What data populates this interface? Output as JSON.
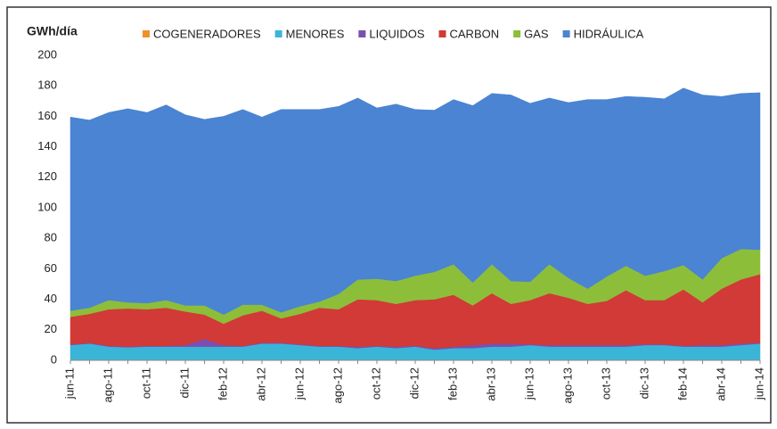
{
  "chart_data": {
    "type": "stacked-area",
    "title": "GWh/día",
    "categories": [
      "jun-11",
      null,
      "ago-11",
      null,
      "oct-11",
      null,
      "dic-11",
      null,
      "feb-12",
      null,
      "abr-12",
      null,
      "jun-12",
      null,
      "ago-12",
      null,
      "oct-12",
      null,
      "dic-12",
      null,
      "feb-13",
      null,
      "abr-13",
      null,
      "jun-13",
      null,
      "ago-13",
      null,
      "oct-13",
      null,
      "dic-13",
      null,
      "feb-14",
      null,
      "abr-14",
      null,
      "jun-14"
    ],
    "series": [
      {
        "name": "COGENERADORES",
        "color": "#f0902a",
        "values": [
          0.5,
          0.5,
          0.5,
          0.5,
          0.5,
          0.5,
          0.5,
          0.5,
          0.5,
          0.5,
          0.5,
          0.5,
          0.5,
          0.5,
          0.5,
          0.5,
          0.5,
          0.5,
          0.5,
          0.5,
          0.5,
          0.5,
          0.5,
          0.5,
          0.5,
          0.5,
          0.5,
          0.5,
          0.5,
          0.5,
          0.5,
          0.5,
          0.5,
          0.5,
          0.5,
          0.5,
          0.5
        ]
      },
      {
        "name": "MENORES",
        "color": "#3ab5d8",
        "values": [
          9.5,
          10.5,
          8.5,
          8,
          8.5,
          8.5,
          8.5,
          8.5,
          8.5,
          8.5,
          10.5,
          10.5,
          9.5,
          8.5,
          8.5,
          7.5,
          8.5,
          7.5,
          8.5,
          6.5,
          7.5,
          7.5,
          8.5,
          8.5,
          9.5,
          8.5,
          8.5,
          8.5,
          8.5,
          8.5,
          9.5,
          9.5,
          8.5,
          8.5,
          8.5,
          9.5,
          10.5
        ]
      },
      {
        "name": "LIQUIDOS",
        "color": "#7b4fb0",
        "values": [
          0.5,
          0.5,
          0.5,
          0.5,
          0.5,
          0.5,
          1,
          5,
          1,
          0.5,
          0.5,
          0.5,
          0.5,
          0.5,
          0.5,
          1,
          0.5,
          1,
          0.5,
          1,
          1,
          2,
          2,
          2,
          0.5,
          1,
          1,
          1,
          1,
          1,
          0.5,
          0.5,
          0.5,
          1,
          1,
          1,
          0.5
        ]
      },
      {
        "name": "CARBON",
        "color": "#d13a36",
        "values": [
          18,
          19,
          24,
          25,
          24,
          25,
          22,
          16,
          14,
          20,
          21,
          16,
          20,
          25,
          24,
          31,
          30,
          28,
          30,
          32,
          34,
          26,
          33,
          26,
          29,
          34,
          31,
          27,
          29,
          36,
          29,
          29,
          37,
          28,
          37,
          42,
          45
        ]
      },
      {
        "name": "GAS",
        "color": "#8dbe3a",
        "values": [
          4,
          4,
          6,
          4,
          4,
          5,
          4,
          6,
          6,
          7,
          4,
          4,
          5,
          4,
          10,
          13,
          14,
          15,
          16,
          18,
          20,
          15,
          19,
          15,
          12,
          19,
          13,
          10,
          16,
          16,
          16,
          19,
          16,
          15,
          20,
          20,
          16
        ]
      },
      {
        "name": "HIDRÁULICA",
        "color": "#4a84d2",
        "values": [
          127,
          123,
          123,
          127,
          125,
          128,
          125,
          122,
          130,
          128,
          123,
          133,
          129,
          126,
          123,
          119,
          112,
          116,
          109,
          106,
          108,
          116,
          112,
          122,
          117,
          109,
          115,
          124,
          116,
          111,
          117,
          113,
          116,
          121,
          106,
          102,
          103
        ]
      }
    ],
    "ylim": [
      0,
      200
    ],
    "yticks": [
      0,
      20,
      40,
      60,
      80,
      100,
      120,
      140,
      160,
      180,
      200
    ],
    "grid": false
  }
}
